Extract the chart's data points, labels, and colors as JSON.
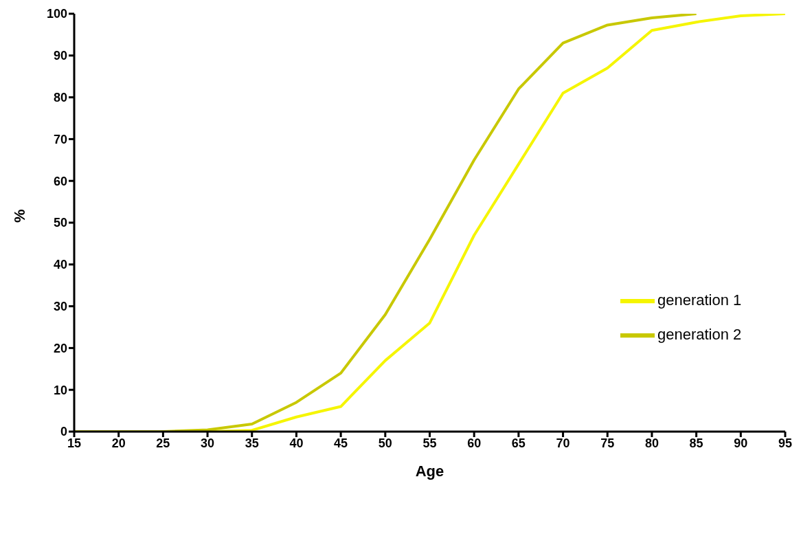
{
  "chart_data": {
    "type": "line",
    "xlabel": "Age",
    "ylabel": "%",
    "x": [
      15,
      20,
      25,
      30,
      35,
      40,
      45,
      50,
      55,
      60,
      65,
      70,
      75,
      80,
      85,
      90,
      95
    ],
    "series": [
      {
        "name": "generation 1",
        "color": "#f5f500",
        "values": [
          0,
          0,
          0,
          0,
          0.3,
          3.5,
          6,
          17,
          26,
          47,
          64,
          81,
          87,
          96,
          98,
          99.5,
          100
        ]
      },
      {
        "name": "generation 2",
        "color": "#c8c800",
        "values": [
          0,
          0,
          0,
          0.4,
          1.8,
          7,
          14,
          28,
          46,
          65,
          82,
          93,
          97.3,
          99,
          100,
          null,
          null
        ]
      }
    ],
    "xlim": [
      15,
      95
    ],
    "xticks": [
      15,
      20,
      25,
      30,
      35,
      40,
      45,
      50,
      55,
      60,
      65,
      70,
      75,
      80,
      85,
      90,
      95
    ],
    "ylim": [
      0,
      100
    ],
    "yticks": [
      0,
      10,
      20,
      30,
      40,
      50,
      60,
      70,
      80,
      90,
      100
    ],
    "grid": false,
    "legend": "right",
    "marker": "none",
    "line_style": "solid"
  }
}
